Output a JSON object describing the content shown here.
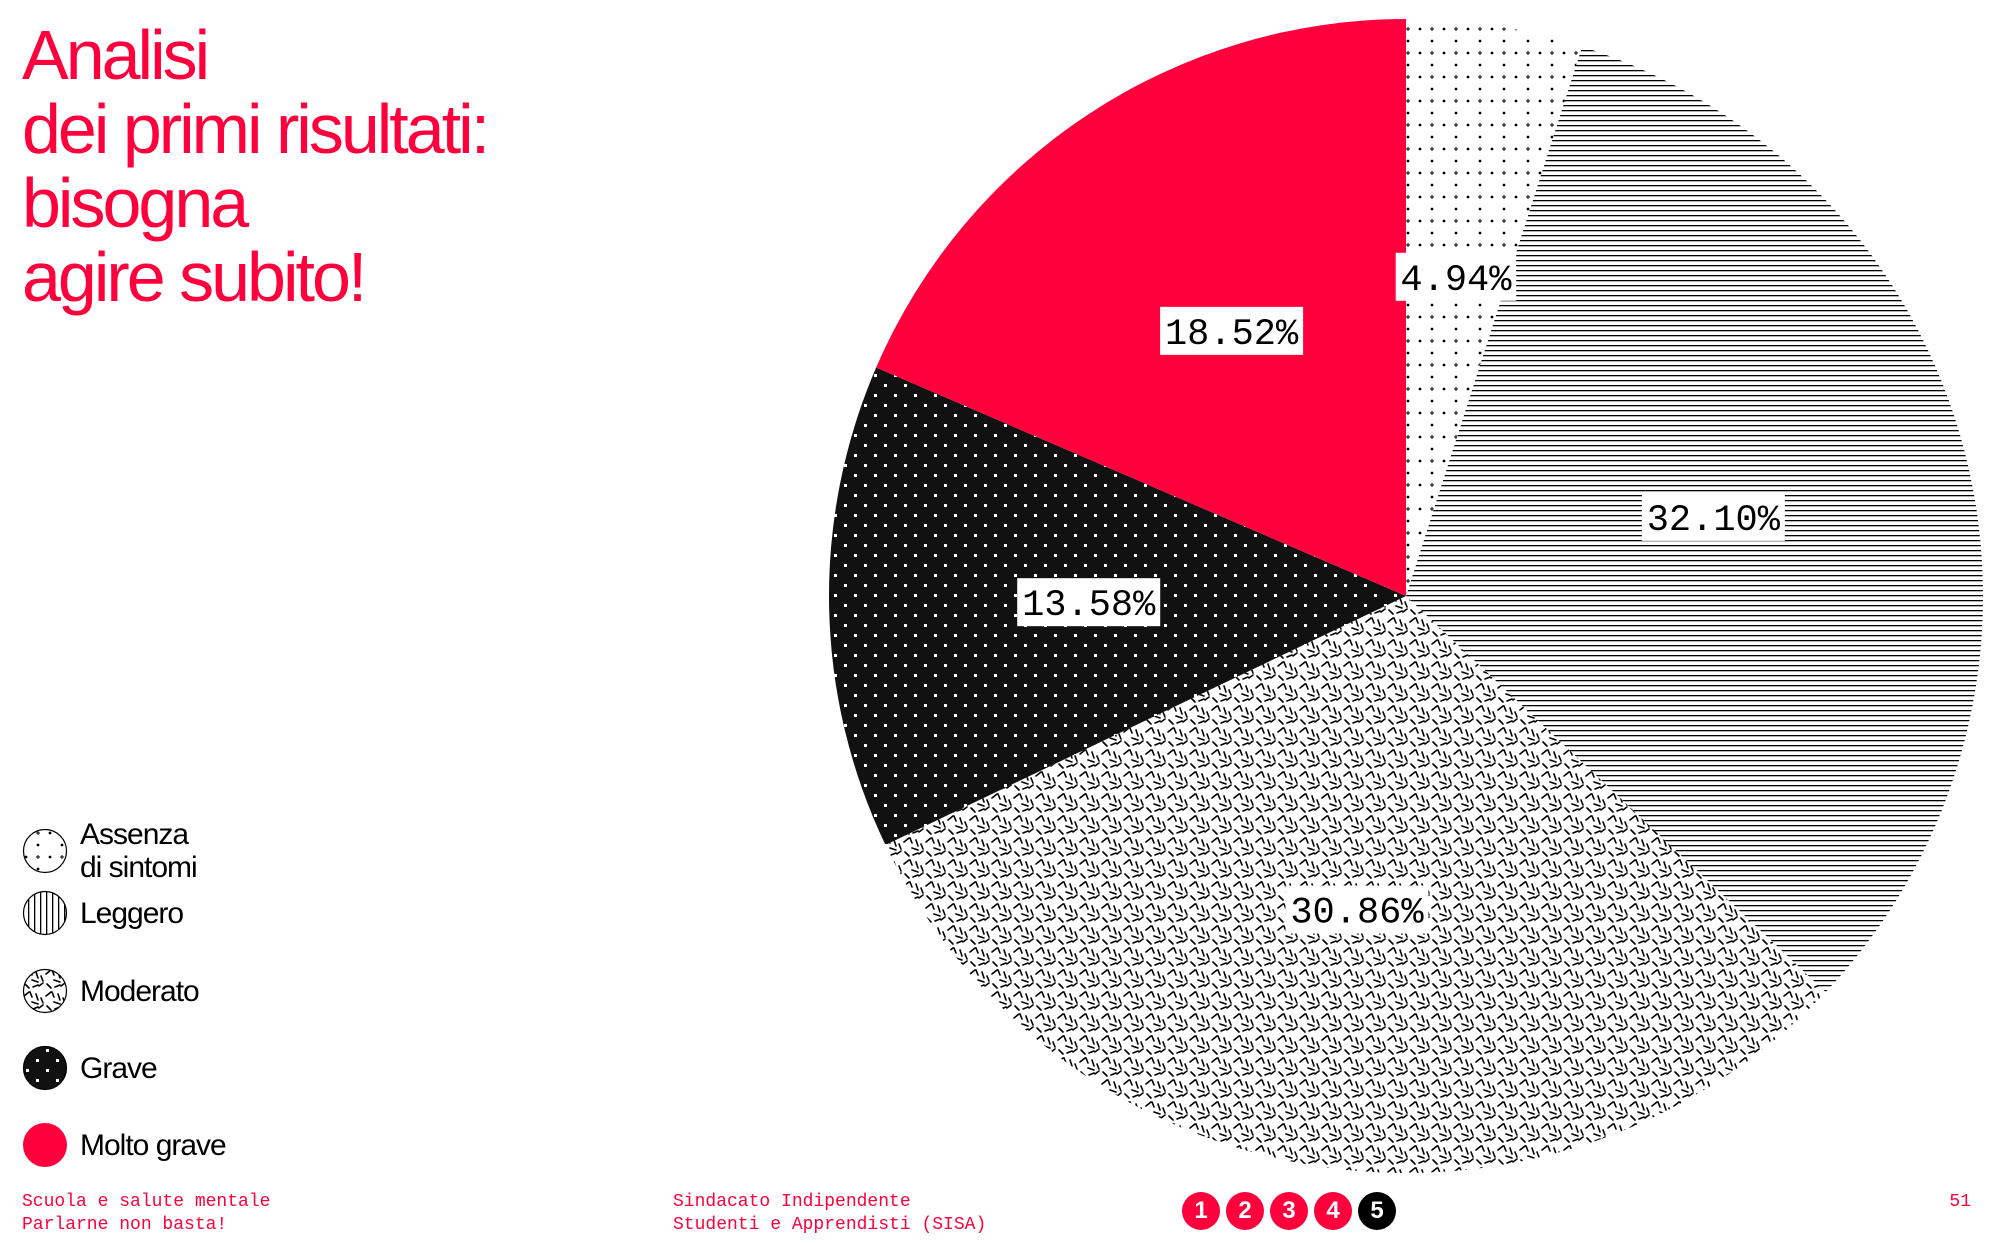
{
  "header": {
    "title": "Analisi\ndei primi risultati:\nbisogna\nagire subito!"
  },
  "colors": {
    "accent": "#ff003c",
    "ink": "#000000",
    "paper": "#ffffff"
  },
  "chart_data": {
    "type": "pie",
    "title": "",
    "categories": [
      "Assenza di sintomi",
      "Leggero",
      "Moderato",
      "Grave",
      "Molto grave"
    ],
    "values": [
      4.94,
      32.1,
      30.86,
      13.58,
      18.52
    ],
    "data_labels": [
      "4.94%",
      "32.10%",
      "30.86%",
      "13.58%",
      "18.52%"
    ],
    "start_angle": "12 o'clock",
    "direction": "clockwise",
    "legend_position": "bottom-left",
    "fills": [
      "sparse-dots",
      "horizontal-lines",
      "dashes",
      "dark-dots",
      "solid-red"
    ]
  },
  "legend": {
    "items": [
      {
        "label": "Assenza\ndi sintomi",
        "icon": "sparse-dots-swatch-icon"
      },
      {
        "label": "Leggero",
        "icon": "vertical-lines-swatch-icon"
      },
      {
        "label": "Moderato",
        "icon": "dashes-swatch-icon"
      },
      {
        "label": "Grave",
        "icon": "dark-dots-swatch-icon"
      },
      {
        "label": "Molto grave",
        "icon": "red-solid-swatch-icon"
      }
    ]
  },
  "footer": {
    "left": "Scuola e salute mentale\nParlarne non basta!",
    "center": "Sindacato Indipendente\nStudenti e Apprendisti (SISA)",
    "page_number": "51",
    "chapters": [
      "1",
      "2",
      "3",
      "4",
      "5"
    ],
    "active_chapter": "5"
  }
}
